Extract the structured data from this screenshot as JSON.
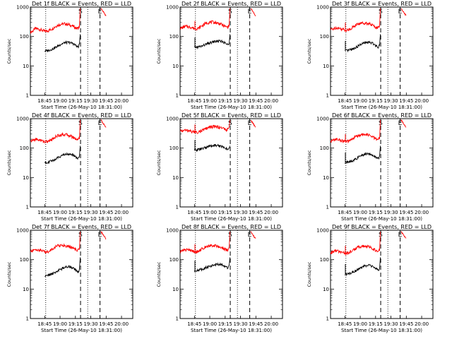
{
  "figure": {
    "x_tick_labels": [
      "18:45",
      "19:00",
      "19:15",
      "19:30",
      "19:45",
      "20:00"
    ],
    "y_tick_labels": [
      "1",
      "10",
      "100",
      "1000"
    ],
    "y_label": "Counts/sec",
    "x_label": "Start Time (26-May-10 18:31:00)"
  },
  "chart_data": [
    {
      "type": "line",
      "title": "Det 1f BLACK = Events, RED = LLD",
      "x_unit": "minutes",
      "x_range": [
        0,
        100
      ],
      "y_range": [
        1,
        1000
      ],
      "y_scale": "log",
      "series": [
        {
          "color": "#ff0000",
          "x": [
            0,
            2,
            5,
            10,
            14,
            18,
            22,
            26,
            30,
            34,
            38,
            42,
            45,
            47,
            48
          ],
          "values": [
            140,
            150,
            190,
            170,
            150,
            160,
            190,
            235,
            265,
            270,
            250,
            220,
            190,
            195,
            215
          ]
        },
        {
          "color": "#000000",
          "x": [
            14,
            18,
            22,
            26,
            30,
            34,
            38,
            42,
            45,
            47,
            48
          ],
          "values": [
            32,
            34,
            38,
            45,
            55,
            62,
            63,
            57,
            47,
            44,
            55
          ]
        }
      ],
      "features": {
        "spike_x": null,
        "jump_x": 48,
        "dotted_x": [
          15,
          56
        ],
        "dashed_x": [
          49,
          68
        ],
        "s_marker_x": 49,
        "e_marker_x": 68
      }
    },
    {
      "type": "line",
      "title": "Det 2f BLACK = Events, RED = LLD",
      "x_unit": "minutes",
      "x_range": [
        0,
        100
      ],
      "y_range": [
        1,
        1000
      ],
      "y_scale": "log",
      "series": [
        {
          "color": "#ff0000",
          "x": [
            0,
            2,
            5,
            10,
            14,
            18,
            22,
            26,
            30,
            34,
            38,
            42,
            45,
            47,
            48
          ],
          "values": [
            190,
            200,
            220,
            210,
            185,
            190,
            240,
            290,
            310,
            300,
            280,
            240,
            210,
            215,
            240
          ]
        },
        {
          "color": "#000000",
          "x": [
            14,
            18,
            22,
            26,
            30,
            34,
            38,
            42,
            45,
            47,
            48
          ],
          "values": [
            42,
            44,
            48,
            55,
            62,
            68,
            70,
            66,
            56,
            52,
            62
          ]
        }
      ],
      "features": {
        "spike_x": 14.5,
        "jump_x": 48,
        "dotted_x": [
          15,
          56
        ],
        "dashed_x": [
          49,
          68
        ],
        "s_marker_x": 49,
        "e_marker_x": 68
      }
    },
    {
      "type": "line",
      "title": "Det 3f BLACK = Events, RED = LLD",
      "x_unit": "minutes",
      "x_range": [
        0,
        100
      ],
      "y_range": [
        1,
        1000
      ],
      "y_scale": "log",
      "series": [
        {
          "color": "#ff0000",
          "x": [
            0,
            2,
            5,
            10,
            14,
            18,
            22,
            26,
            30,
            34,
            38,
            42,
            45,
            47,
            48
          ],
          "values": [
            170,
            180,
            200,
            185,
            165,
            170,
            210,
            260,
            285,
            290,
            270,
            230,
            200,
            205,
            225
          ]
        },
        {
          "color": "#000000",
          "x": [
            14,
            18,
            22,
            26,
            30,
            34,
            38,
            42,
            45,
            47,
            48
          ],
          "values": [
            32,
            34,
            38,
            45,
            55,
            62,
            63,
            57,
            47,
            44,
            55
          ]
        }
      ],
      "features": {
        "spike_x": 14.5,
        "jump_x": 48,
        "dotted_x": [
          15,
          56
        ],
        "dashed_x": [
          49,
          68
        ],
        "s_marker_x": 49,
        "e_marker_x": 68
      }
    },
    {
      "type": "line",
      "title": "Det 4f BLACK = Events, RED = LLD",
      "x_unit": "minutes",
      "x_range": [
        0,
        100
      ],
      "y_range": [
        1,
        1000
      ],
      "y_scale": "log",
      "series": [
        {
          "color": "#ff0000",
          "x": [
            0,
            2,
            5,
            10,
            14,
            18,
            22,
            26,
            30,
            34,
            38,
            42,
            45,
            47,
            48
          ],
          "values": [
            170,
            180,
            200,
            185,
            165,
            170,
            210,
            260,
            285,
            290,
            270,
            230,
            200,
            205,
            225
          ]
        },
        {
          "color": "#000000",
          "x": [
            14,
            18,
            22,
            26,
            30,
            34,
            38,
            42,
            45,
            47,
            48
          ],
          "values": [
            32,
            34,
            38,
            45,
            55,
            62,
            63,
            57,
            47,
            44,
            55
          ]
        }
      ],
      "features": {
        "spike_x": null,
        "jump_x": 48,
        "dotted_x": [
          15,
          56
        ],
        "dashed_x": [
          49,
          68
        ],
        "s_marker_x": 49,
        "e_marker_x": 68
      }
    },
    {
      "type": "line",
      "title": "Det 5f BLACK = Events, RED = LLD",
      "x_unit": "minutes",
      "x_range": [
        0,
        100
      ],
      "y_range": [
        1,
        1000
      ],
      "y_scale": "log",
      "series": [
        {
          "color": "#ff0000",
          "x": [
            0,
            2,
            5,
            10,
            14,
            18,
            22,
            26,
            30,
            34,
            38,
            42,
            45,
            47,
            48
          ],
          "values": [
            380,
            390,
            400,
            380,
            350,
            355,
            400,
            470,
            520,
            540,
            520,
            470,
            420,
            430,
            460
          ]
        },
        {
          "color": "#000000",
          "x": [
            14,
            18,
            22,
            26,
            30,
            34,
            38,
            42,
            45,
            47,
            48
          ],
          "values": [
            85,
            90,
            96,
            108,
            118,
            125,
            122,
            110,
            96,
            92,
            108
          ]
        }
      ],
      "features": {
        "spike_x": 14.5,
        "jump_x": 48,
        "dotted_x": [
          15,
          56
        ],
        "dashed_x": [
          49,
          68
        ],
        "s_marker_x": 49,
        "e_marker_x": 68
      }
    },
    {
      "type": "line",
      "title": "Det 6f BLACK = Events, RED = LLD",
      "x_unit": "minutes",
      "x_range": [
        0,
        100
      ],
      "y_range": [
        1,
        1000
      ],
      "y_scale": "log",
      "series": [
        {
          "color": "#ff0000",
          "x": [
            0,
            2,
            5,
            10,
            14,
            18,
            22,
            26,
            30,
            34,
            38,
            42,
            45,
            47,
            48
          ],
          "values": [
            170,
            180,
            200,
            185,
            165,
            170,
            210,
            260,
            285,
            290,
            270,
            230,
            200,
            205,
            225
          ]
        },
        {
          "color": "#000000",
          "x": [
            14,
            18,
            22,
            26,
            30,
            34,
            38,
            42,
            45,
            47,
            48
          ],
          "values": [
            32,
            34,
            38,
            45,
            55,
            62,
            63,
            57,
            47,
            44,
            55
          ]
        }
      ],
      "features": {
        "spike_x": 14.5,
        "jump_x": 48,
        "dotted_x": [
          15,
          56
        ],
        "dashed_x": [
          49,
          68
        ],
        "s_marker_x": 49,
        "e_marker_x": 68
      }
    },
    {
      "type": "line",
      "title": "Det 7f BLACK = Events, RED = LLD",
      "x_unit": "minutes",
      "x_range": [
        0,
        100
      ],
      "y_range": [
        1,
        1000
      ],
      "y_scale": "log",
      "series": [
        {
          "color": "#ff0000",
          "x": [
            0,
            2,
            5,
            10,
            14,
            18,
            22,
            26,
            30,
            34,
            38,
            42,
            45,
            47,
            48
          ],
          "values": [
            190,
            200,
            220,
            210,
            185,
            190,
            240,
            290,
            310,
            300,
            280,
            240,
            210,
            215,
            240
          ]
        },
        {
          "color": "#000000",
          "x": [
            14,
            18,
            22,
            26,
            30,
            34,
            38,
            42,
            45,
            47,
            48
          ],
          "values": [
            28,
            30,
            34,
            40,
            48,
            55,
            58,
            52,
            42,
            38,
            48
          ]
        }
      ],
      "features": {
        "spike_x": null,
        "jump_x": 48,
        "dotted_x": [
          15,
          56
        ],
        "dashed_x": [
          49,
          68
        ],
        "s_marker_x": 49,
        "e_marker_x": 68
      }
    },
    {
      "type": "line",
      "title": "Det 8f BLACK = Events, RED = LLD",
      "x_unit": "minutes",
      "x_range": [
        0,
        100
      ],
      "y_range": [
        1,
        1000
      ],
      "y_scale": "log",
      "series": [
        {
          "color": "#ff0000",
          "x": [
            0,
            2,
            5,
            10,
            14,
            18,
            22,
            26,
            30,
            34,
            38,
            42,
            45,
            47,
            48
          ],
          "values": [
            190,
            200,
            220,
            210,
            185,
            190,
            240,
            290,
            310,
            300,
            280,
            240,
            210,
            215,
            240
          ]
        },
        {
          "color": "#000000",
          "x": [
            14,
            18,
            22,
            26,
            30,
            34,
            38,
            42,
            45,
            47,
            48
          ],
          "values": [
            42,
            44,
            48,
            55,
            62,
            68,
            70,
            66,
            56,
            52,
            62
          ]
        }
      ],
      "features": {
        "spike_x": 14.5,
        "jump_x": 48,
        "dotted_x": [
          15,
          56
        ],
        "dashed_x": [
          49,
          68
        ],
        "s_marker_x": 49,
        "e_marker_x": 68
      }
    },
    {
      "type": "line",
      "title": "Det 9f BLACK = Events, RED = LLD",
      "x_unit": "minutes",
      "x_range": [
        0,
        100
      ],
      "y_range": [
        1,
        1000
      ],
      "y_scale": "log",
      "series": [
        {
          "color": "#ff0000",
          "x": [
            0,
            2,
            5,
            10,
            14,
            18,
            22,
            26,
            30,
            34,
            38,
            42,
            45,
            47,
            48
          ],
          "values": [
            170,
            180,
            200,
            185,
            165,
            170,
            210,
            260,
            285,
            290,
            270,
            230,
            200,
            205,
            225
          ]
        },
        {
          "color": "#000000",
          "x": [
            14,
            18,
            22,
            26,
            30,
            34,
            38,
            42,
            45,
            47,
            48
          ],
          "values": [
            32,
            34,
            38,
            45,
            55,
            62,
            63,
            57,
            47,
            44,
            55
          ]
        }
      ],
      "features": {
        "spike_x": 14.5,
        "jump_x": 48,
        "dotted_x": [
          15,
          56
        ],
        "dashed_x": [
          49,
          68
        ],
        "s_marker_x": 49,
        "e_marker_x": 68
      }
    }
  ]
}
